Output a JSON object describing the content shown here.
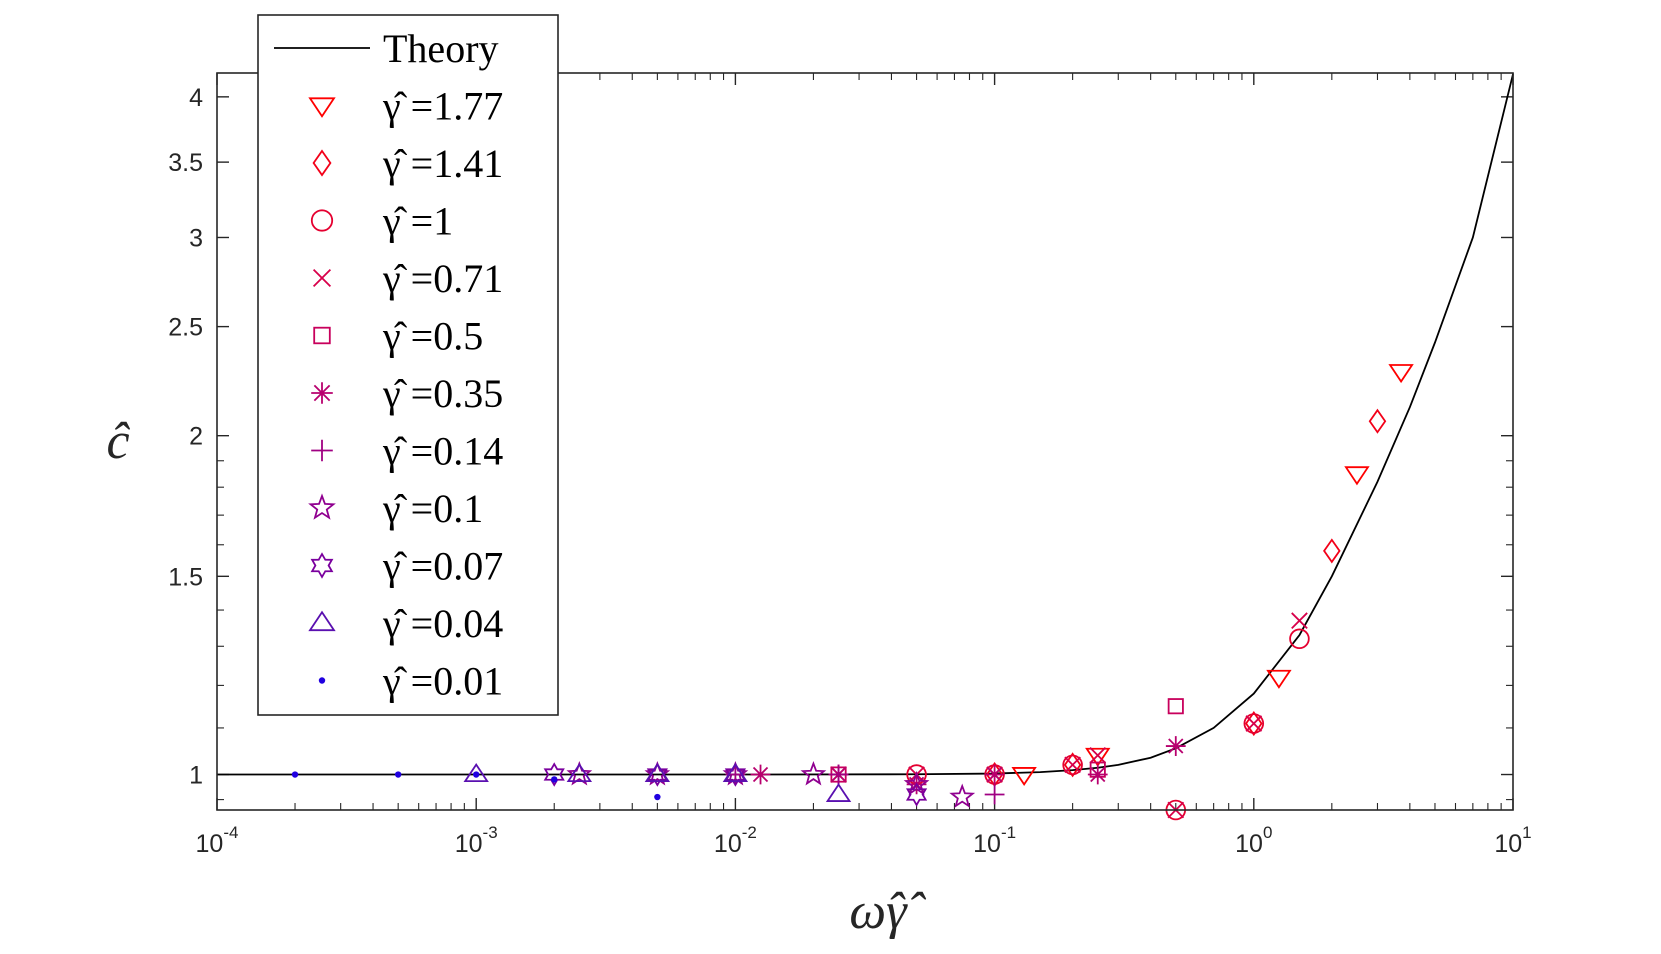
{
  "chart_data": {
    "type": "scatter",
    "title": "",
    "xlabel": "ω̂γ̂",
    "ylabel": "ĉ",
    "xscale": "log",
    "yscale": "log",
    "xlim": [
      0.0001,
      10
    ],
    "ylim": [
      0.93,
      4.2
    ],
    "x_ticks": [
      {
        "base": "10",
        "exp": "-4",
        "value": 0.0001
      },
      {
        "base": "10",
        "exp": "-3",
        "value": 0.001
      },
      {
        "base": "10",
        "exp": "-2",
        "value": 0.01
      },
      {
        "base": "10",
        "exp": "-1",
        "value": 0.1
      },
      {
        "base": "10",
        "exp": "0",
        "value": 1
      },
      {
        "base": "10",
        "exp": "1",
        "value": 10
      }
    ],
    "y_ticks": [
      {
        "label": "1",
        "value": 1
      },
      {
        "label": "1.5",
        "value": 1.5
      },
      {
        "label": "2",
        "value": 2
      },
      {
        "label": "2.5",
        "value": 2.5
      },
      {
        "label": "3",
        "value": 3
      },
      {
        "label": "3.5",
        "value": 3.5
      },
      {
        "label": "4",
        "value": 4
      }
    ],
    "legend_position": "top-left (outside above plot)",
    "theory": {
      "name": "Theory",
      "color": "#000000",
      "x": [
        0.0001,
        0.001,
        0.01,
        0.05,
        0.1,
        0.15,
        0.2,
        0.25,
        0.3,
        0.4,
        0.5,
        0.7,
        1,
        1.5,
        2,
        3,
        4,
        5,
        7,
        10
      ],
      "y": [
        1,
        1,
        1,
        1.0005,
        1.002,
        1.005,
        1.009,
        1.014,
        1.02,
        1.035,
        1.055,
        1.1,
        1.18,
        1.33,
        1.5,
        1.82,
        2.12,
        2.42,
        3.0,
        4.19
      ]
    },
    "series": [
      {
        "name": "γ̂ =1.77",
        "marker": "triangle-down",
        "color": "#ff0000",
        "x": [
          0.13,
          0.25,
          1.25,
          2.5,
          3.7
        ],
        "y": [
          1.0,
          1.04,
          1.22,
          1.85,
          2.28
        ]
      },
      {
        "name": "γ̂ =1.41",
        "marker": "diamond",
        "color": "#f30018",
        "x": [
          0.1,
          0.2,
          1.0,
          2.0,
          3.0
        ],
        "y": [
          1.0,
          1.02,
          1.11,
          1.58,
          2.06
        ]
      },
      {
        "name": "γ̂ =1",
        "marker": "circle",
        "color": "#e50030",
        "x": [
          0.05,
          0.1,
          0.2,
          0.5,
          1.0,
          1.5
        ],
        "y": [
          1.0,
          1.0,
          1.02,
          0.93,
          1.11,
          1.32
        ]
      },
      {
        "name": "γ̂ =0.71",
        "marker": "x",
        "color": "#d8004a",
        "x": [
          0.025,
          0.05,
          0.1,
          0.2,
          0.25,
          0.5,
          1.0,
          1.5
        ],
        "y": [
          1.0,
          1.0,
          1.0,
          1.02,
          1.04,
          0.93,
          1.11,
          1.37
        ]
      },
      {
        "name": "γ̂ =0.5",
        "marker": "square",
        "color": "#c8005c",
        "x": [
          0.025,
          0.25,
          0.5
        ],
        "y": [
          1.0,
          1.01,
          1.15
        ]
      },
      {
        "name": "γ̂ =0.35",
        "marker": "asterisk",
        "color": "#b8006e",
        "x": [
          0.0125,
          0.025,
          0.05,
          0.1,
          0.25,
          0.5
        ],
        "y": [
          1.0,
          1.0,
          0.98,
          1.0,
          1.0,
          1.06
        ]
      },
      {
        "name": "γ̂ =0.14",
        "marker": "plus",
        "color": "#a00082",
        "x": [
          0.01,
          0.025,
          0.1
        ],
        "y": [
          1.0,
          1.0,
          0.96
        ]
      },
      {
        "name": "γ̂ =0.1",
        "marker": "pentagram",
        "color": "#900090",
        "x": [
          0.0025,
          0.005,
          0.01,
          0.02,
          0.05,
          0.075
        ],
        "y": [
          1.0,
          1.0,
          1.0,
          1.0,
          0.98,
          0.955
        ]
      },
      {
        "name": "γ̂ =0.07",
        "marker": "hexagram",
        "color": "#7a009e",
        "x": [
          0.002,
          0.005,
          0.01,
          0.05
        ],
        "y": [
          1.0,
          1.0,
          1.0,
          0.96
        ]
      },
      {
        "name": "γ̂ =0.04",
        "marker": "triangle-up",
        "color": "#5a10b0",
        "x": [
          0.001,
          0.0025,
          0.005,
          0.01,
          0.025
        ],
        "y": [
          1.0,
          1.0,
          1.0,
          1.0,
          0.96
        ]
      },
      {
        "name": "γ̂ =0.01",
        "marker": "dot",
        "color": "#2000e0",
        "x": [
          0.0002,
          0.0005,
          0.001,
          0.002,
          0.005
        ],
        "y": [
          1.0,
          1.0,
          1.0,
          0.99,
          0.955
        ]
      }
    ]
  }
}
